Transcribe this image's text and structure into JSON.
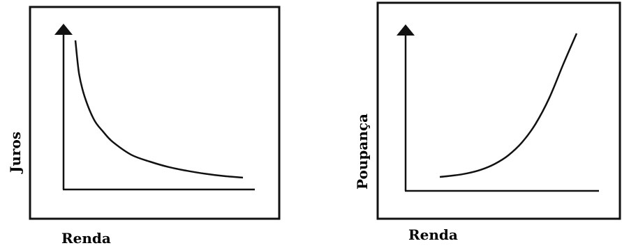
{
  "chart_data": [
    {
      "type": "line",
      "xlabel": "Renda",
      "ylabel": "Juros",
      "trend": "decreasing, convex",
      "grid": false,
      "axis_ticks": false,
      "series": [
        {
          "x": [
            1.0,
            1.2,
            1.5,
            2.0,
            2.5,
            3.0,
            4.0,
            5.0,
            6.0,
            7.0,
            8.0,
            9.0,
            10.0
          ],
          "y": [
            10.0,
            7.8,
            6.3,
            4.8,
            4.0,
            3.35,
            2.5,
            2.05,
            1.7,
            1.45,
            1.25,
            1.1,
            1.0
          ]
        }
      ]
    },
    {
      "type": "line",
      "xlabel": "Renda",
      "ylabel": "Poupança",
      "trend": "increasing, convex",
      "grid": false,
      "axis_ticks": false,
      "series": [
        {
          "x": [
            0,
            1,
            2,
            3,
            4,
            5,
            6,
            7,
            8,
            9,
            10
          ],
          "y": [
            0.0,
            0.1,
            0.25,
            0.5,
            0.9,
            1.5,
            2.4,
            3.7,
            5.5,
            7.8,
            10.0
          ]
        }
      ]
    }
  ]
}
